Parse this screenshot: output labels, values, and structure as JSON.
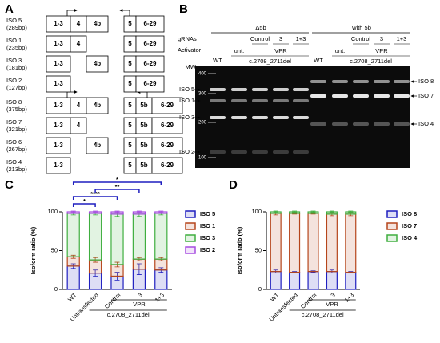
{
  "panel_a": {
    "label": "A",
    "groups": [
      {
        "rows": [
          {
            "name": "ISO 5",
            "size": "(289bp)",
            "exons": [
              "1-3",
              "4",
              "4b",
              "5",
              "6-29"
            ]
          },
          {
            "name": "ISO 1",
            "size": "(235bp)",
            "exons": [
              "1-3",
              "4",
              null,
              "5",
              "6-29"
            ]
          },
          {
            "name": "ISO 3",
            "size": "(181bp)",
            "exons": [
              "1-3",
              null,
              "4b",
              "5",
              "6-29"
            ]
          },
          {
            "name": "ISO 2",
            "size": "(127bp)",
            "exons": [
              "1-3",
              null,
              null,
              "5",
              "6-29"
            ]
          }
        ]
      },
      {
        "rows": [
          {
            "name": "ISO 8",
            "size": "(375bp)",
            "exons": [
              "1-3",
              "4",
              "4b",
              "5",
              "5b",
              "6-29"
            ]
          },
          {
            "name": "ISO 7",
            "size": "(321bp)",
            "exons": [
              "1-3",
              "4",
              null,
              "5",
              "5b",
              "6-29"
            ]
          },
          {
            "name": "ISO 6",
            "size": "(267bp)",
            "exons": [
              "1-3",
              null,
              "4b",
              "5",
              "5b",
              "6-29"
            ]
          },
          {
            "name": "ISO 4",
            "size": "(213bp)",
            "exons": [
              "1-3",
              null,
              null,
              "5",
              "5b",
              "6-29"
            ]
          }
        ]
      }
    ]
  },
  "panel_b": {
    "label": "B",
    "grna_label": "gRNAs",
    "activator_label": "Activator",
    "mw_label": "MW",
    "mw_ticks": [
      400,
      300,
      200,
      100
    ],
    "sections": [
      {
        "title": "Δ5b",
        "wt": "WT",
        "untreated": "unt.",
        "grnas": [
          "Control",
          "3",
          "1+3"
        ],
        "activator": "VPR",
        "mutation": "c.2708_2711del"
      },
      {
        "title": "with 5b",
        "wt": "WT",
        "untreated": "unt.",
        "grnas": [
          "Control",
          "3",
          "1+3"
        ],
        "activator": "VPR",
        "mutation": "c.2708_2711del"
      }
    ],
    "bands_left": [
      "ISO 5",
      "ISO 1",
      "ISO 3",
      "ISO 2"
    ],
    "bands_right": [
      "ISO 8",
      "ISO 7",
      "ISO 4"
    ]
  },
  "chart_data": [
    {
      "type": "stacked_bar",
      "panel_label": "C",
      "ylabel": "Isoform ratio (%)",
      "categories": [
        "WT",
        "Untransfected",
        "Control",
        "3",
        "1+3"
      ],
      "series": [
        {
          "name": "ISO 5",
          "color": "#1f1fbf",
          "values": [
            30,
            21,
            17,
            26,
            25
          ],
          "errors": [
            3,
            4,
            5,
            7,
            3
          ]
        },
        {
          "name": "ISO 1",
          "color": "#b5451b",
          "values": [
            12,
            17,
            15,
            13,
            14
          ],
          "errors": [
            2,
            3,
            3,
            2,
            2
          ]
        },
        {
          "name": "ISO 3",
          "color": "#3fae3f",
          "values": [
            56,
            60,
            65,
            58,
            59
          ],
          "errors": [
            2,
            2,
            3,
            3,
            2
          ]
        },
        {
          "name": "ISO 2",
          "color": "#a64ce0",
          "values": [
            2,
            2,
            3,
            3,
            2
          ],
          "errors": [
            1,
            1,
            1,
            1,
            1
          ]
        }
      ],
      "ylim": [
        0,
        100
      ],
      "yticks": [
        0,
        50,
        100
      ],
      "groups": [
        {
          "label": "VPR",
          "from": 2,
          "to": 4
        },
        {
          "label": "c.2708_2711del",
          "from": 1,
          "to": 4
        }
      ],
      "comparison_color": "#1f1fbf",
      "comparisons": [
        {
          "from": 0,
          "to": 1,
          "label": "*"
        },
        {
          "from": 0,
          "to": 2,
          "label": "****"
        },
        {
          "from": 1,
          "to": 3,
          "label": "**"
        },
        {
          "from": 0,
          "to": 4,
          "label": "*"
        }
      ]
    },
    {
      "type": "stacked_bar",
      "panel_label": "D",
      "ylabel": "Isoform ratio (%)",
      "categories": [
        "WT",
        "Untransfected",
        "Control",
        "3",
        "1+3"
      ],
      "series": [
        {
          "name": "ISO 8",
          "color": "#1f1fbf",
          "values": [
            23,
            22,
            23,
            23,
            22
          ],
          "errors": [
            2,
            1,
            1,
            2,
            1
          ]
        },
        {
          "name": "ISO 7",
          "color": "#b5451b",
          "values": [
            75,
            76,
            75,
            74,
            75
          ],
          "errors": [
            2,
            1,
            1,
            2,
            2
          ]
        },
        {
          "name": "ISO 4",
          "color": "#3fae3f",
          "values": [
            2,
            2,
            2,
            3,
            3
          ],
          "errors": [
            1,
            1,
            1,
            1,
            1
          ]
        }
      ],
      "ylim": [
        0,
        100
      ],
      "yticks": [
        0,
        50,
        100
      ],
      "groups": [
        {
          "label": "VPR",
          "from": 2,
          "to": 4
        },
        {
          "label": "c.2708_2711del",
          "from": 1,
          "to": 4
        }
      ]
    }
  ]
}
